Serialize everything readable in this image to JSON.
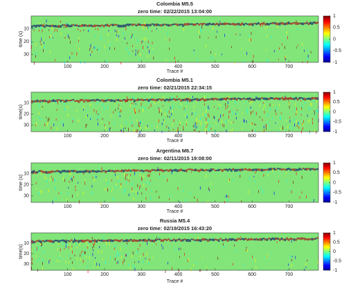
{
  "chart_data": [
    {
      "type": "heatmap",
      "title": "Colombia M5.5",
      "subtitle": "zero time: 02/22/2015 13:04:00",
      "x_label": "Trace #",
      "y_label": "time (s)",
      "xlim": [
        1,
        780
      ],
      "xticks": [
        100,
        200,
        300,
        400,
        500,
        600,
        700
      ],
      "ylim": [
        0,
        36
      ],
      "yticks": [
        10,
        20,
        30
      ],
      "y_reversed": true,
      "clim": [
        -1,
        1
      ],
      "cticks": [
        -1,
        -0.5,
        0,
        0.5,
        1
      ],
      "colormap": "jet"
    },
    {
      "type": "heatmap",
      "title": "Colombia M5.1",
      "subtitle": "zero time: 02/21/2015 22:34:15",
      "x_label": "Trace #",
      "y_label": "time(s)",
      "xlim": [
        1,
        780
      ],
      "xticks": [
        100,
        200,
        300,
        400,
        500,
        600,
        700
      ],
      "ylim": [
        0,
        36
      ],
      "yticks": [
        10,
        20,
        30
      ],
      "y_reversed": true,
      "clim": [
        -1,
        1
      ],
      "cticks": [
        -1,
        -0.5,
        0,
        0.5,
        1
      ],
      "colormap": "jet"
    },
    {
      "type": "heatmap",
      "title": "Argentina M6.7",
      "subtitle": "zero time: 02/11/2015 19:08:00",
      "x_label": "Trace #",
      "y_label": "time (s)",
      "xlim": [
        1,
        780
      ],
      "xticks": [
        100,
        200,
        300,
        400,
        500,
        600,
        700
      ],
      "ylim": [
        0,
        36
      ],
      "yticks": [
        10,
        20,
        30
      ],
      "y_reversed": true,
      "clim": [
        -1,
        1
      ],
      "cticks": [
        -1,
        -0.5,
        0,
        0.5,
        1
      ],
      "colormap": "jet"
    },
    {
      "type": "heatmap",
      "title": "Russia M5.4",
      "subtitle": "zero time: 02/19/2015 16:43:20",
      "x_label": "Trace #",
      "y_label": "time(s)",
      "xlim": [
        1,
        780
      ],
      "xticks": [
        100,
        200,
        300,
        400,
        500,
        600,
        700
      ],
      "ylim": [
        0,
        36
      ],
      "yticks": [
        10,
        20,
        30
      ],
      "y_reversed": true,
      "clim": [
        -1,
        1
      ],
      "cticks": [
        -1,
        -0.5,
        0,
        0.5,
        1
      ],
      "colormap": "jet"
    }
  ]
}
